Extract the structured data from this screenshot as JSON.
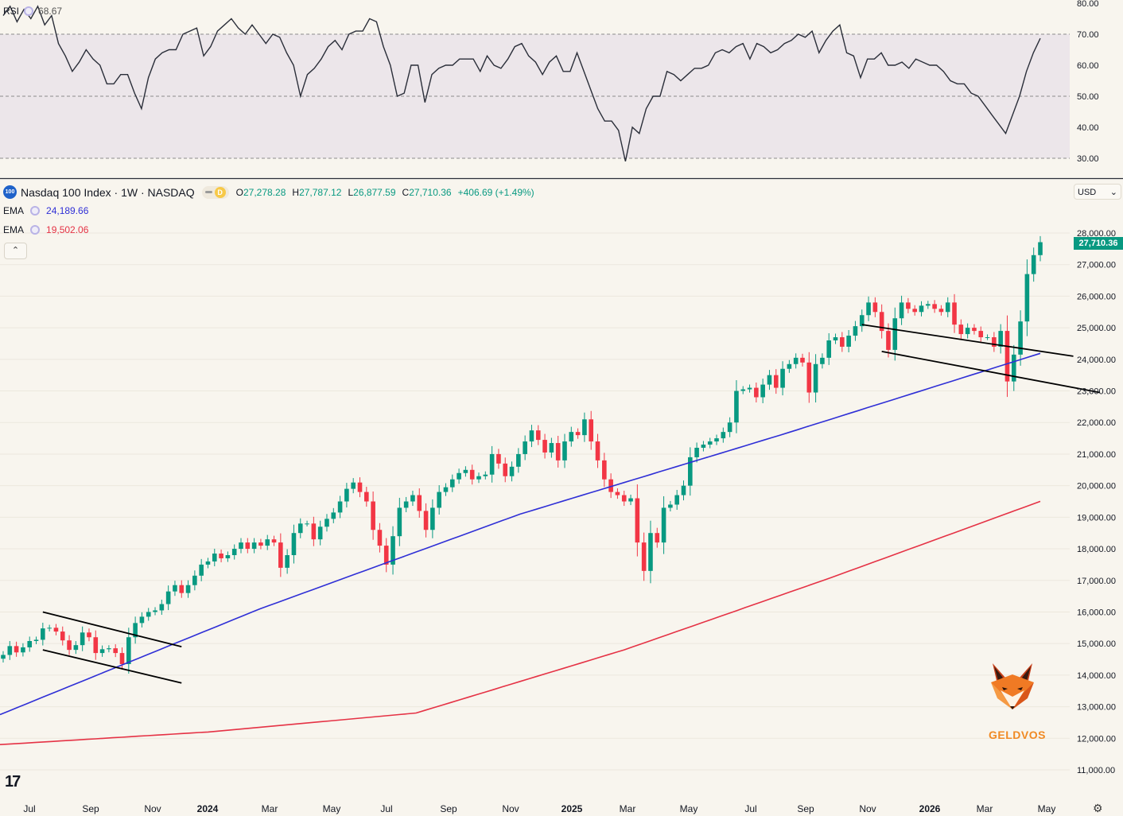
{
  "rsi": {
    "label": "RSI",
    "value": "68.67"
  },
  "symbol": {
    "name": "Nasdaq 100 Index · 1W · NASDAQ",
    "logo_text": "100",
    "badge_letter": "D",
    "ohlc": {
      "o_label": "O",
      "o": "27,278.28",
      "h_label": "H",
      "h": "27,787.12",
      "l_label": "L",
      "l": "26,877.59",
      "c_label": "C",
      "c": "27,710.36",
      "change": "+406.69 (+1.49%)"
    }
  },
  "ema_fast": {
    "label": "EMA",
    "value": "24,189.66",
    "color": "#2f2fd6"
  },
  "ema_slow": {
    "label": "EMA",
    "value": "19,502.06",
    "color": "#e53245"
  },
  "currency": "USD",
  "last_price_tag": "27,710.36",
  "watermark_text": "GELDVOS",
  "colors": {
    "up": "#089981",
    "down": "#f23645",
    "rsi_line": "#2a2e39",
    "rsi_band": "#ece6ea",
    "background": "#f8f5ee"
  },
  "chart_data": [
    {
      "type": "line",
      "title": "RSI",
      "ylim": [
        27,
        82
      ],
      "y_ticks": [
        "80.00",
        "70.00",
        "60.00",
        "50.00",
        "40.00",
        "30.00"
      ],
      "reference_lines": [
        70,
        50,
        30
      ],
      "series": [
        {
          "name": "RSI",
          "values": [
            76,
            79,
            74,
            78,
            75,
            79,
            73,
            76,
            67,
            63,
            58,
            61,
            65,
            62,
            60,
            54,
            54,
            57,
            57,
            51,
            46,
            56,
            62,
            64,
            65,
            65,
            70,
            71,
            72,
            63,
            66,
            71,
            73,
            75,
            72,
            70,
            73,
            70,
            67,
            70,
            69,
            64,
            60,
            50,
            57,
            59,
            62,
            66,
            68,
            65,
            70,
            71,
            71,
            75,
            74,
            66,
            60,
            50,
            51,
            60,
            60,
            48,
            57,
            59,
            60,
            60,
            62,
            62,
            62,
            58,
            63,
            60,
            59,
            62,
            66,
            67,
            63,
            61,
            57,
            61,
            63,
            58,
            58,
            64,
            58,
            52,
            46,
            42,
            42,
            39,
            29,
            40,
            38,
            46,
            50,
            50,
            58,
            57,
            55,
            57,
            59,
            59,
            60,
            64,
            65,
            64,
            66,
            67,
            62,
            67,
            66,
            64,
            65,
            67,
            68,
            70,
            69,
            71,
            64,
            68,
            71,
            73,
            64,
            63,
            56,
            62,
            62,
            64,
            60,
            60,
            61,
            59,
            62,
            61,
            60,
            60,
            58,
            55,
            54,
            54,
            51,
            50,
            47,
            44,
            41,
            38,
            44,
            50,
            58,
            64,
            68.67
          ]
        }
      ]
    },
    {
      "type": "candlestick",
      "title": "Nasdaq 100 Index · 1W · NASDAQ",
      "ylim": [
        10800,
        28300
      ],
      "y_ticks": [
        "28,000.00",
        "27,000.00",
        "26,000.00",
        "25,000.00",
        "24,000.00",
        "23,000.00",
        "22,000.00",
        "21,000.00",
        "20,000.00",
        "19,000.00",
        "18,000.00",
        "17,000.00",
        "16,000.00",
        "15,000.00",
        "14,000.00",
        "13,000.00",
        "12,000.00",
        "11,000.00"
      ],
      "x_ticks": [
        "Jul",
        "Sep",
        "Nov",
        "2024",
        "Mar",
        "May",
        "Jul",
        "Sep",
        "Nov",
        "2025",
        "Mar",
        "May",
        "Jul",
        "Sep",
        "Nov",
        "2026",
        "Mar",
        "May"
      ],
      "closes": [
        14640,
        14920,
        14720,
        14880,
        15080,
        15120,
        15480,
        15500,
        15380,
        15100,
        14800,
        14950,
        15350,
        15200,
        14700,
        14820,
        14850,
        14700,
        14350,
        15200,
        15650,
        15850,
        16000,
        16050,
        16250,
        16650,
        16850,
        16600,
        16850,
        17150,
        17500,
        17600,
        17850,
        17700,
        17800,
        18000,
        18200,
        18000,
        18200,
        18100,
        18300,
        18200,
        17400,
        17800,
        18500,
        18800,
        18800,
        18300,
        18700,
        18950,
        19150,
        19500,
        19900,
        20100,
        19800,
        19500,
        18600,
        18100,
        17500,
        18400,
        19300,
        19500,
        19700,
        19200,
        18600,
        19300,
        19800,
        19950,
        20200,
        20400,
        20500,
        20200,
        20300,
        20350,
        21000,
        20700,
        20300,
        20600,
        21000,
        21400,
        21750,
        21450,
        21050,
        21350,
        20800,
        21400,
        21700,
        21600,
        22100,
        21400,
        20800,
        20200,
        19800,
        19700,
        19500,
        19600,
        18200,
        17300,
        18500,
        18200,
        19300,
        19400,
        19700,
        20000,
        20900,
        21200,
        21300,
        21400,
        21500,
        21700,
        22000,
        23000,
        23050,
        23100,
        22800,
        23200,
        23500,
        23100,
        23700,
        23850,
        24050,
        23900,
        22950,
        23850,
        24050,
        24600,
        24700,
        24400,
        24750,
        25050,
        25400,
        25800,
        25500,
        24900,
        24300,
        25300,
        25800,
        25600,
        25500,
        25700,
        25750,
        25600,
        25500,
        25800,
        25100,
        24800,
        25000,
        24900,
        24700,
        24700,
        24400,
        24900,
        23300,
        24150,
        25200,
        26700,
        27300,
        27710.36
      ]
    },
    {
      "type": "line",
      "name": "EMA",
      "values": [
        12750,
        16100,
        19100,
        21600,
        24189.66
      ]
    },
    {
      "type": "line",
      "name": "EMA",
      "values": [
        11800,
        12200,
        12800,
        14800,
        17100,
        19502.06
      ]
    }
  ]
}
